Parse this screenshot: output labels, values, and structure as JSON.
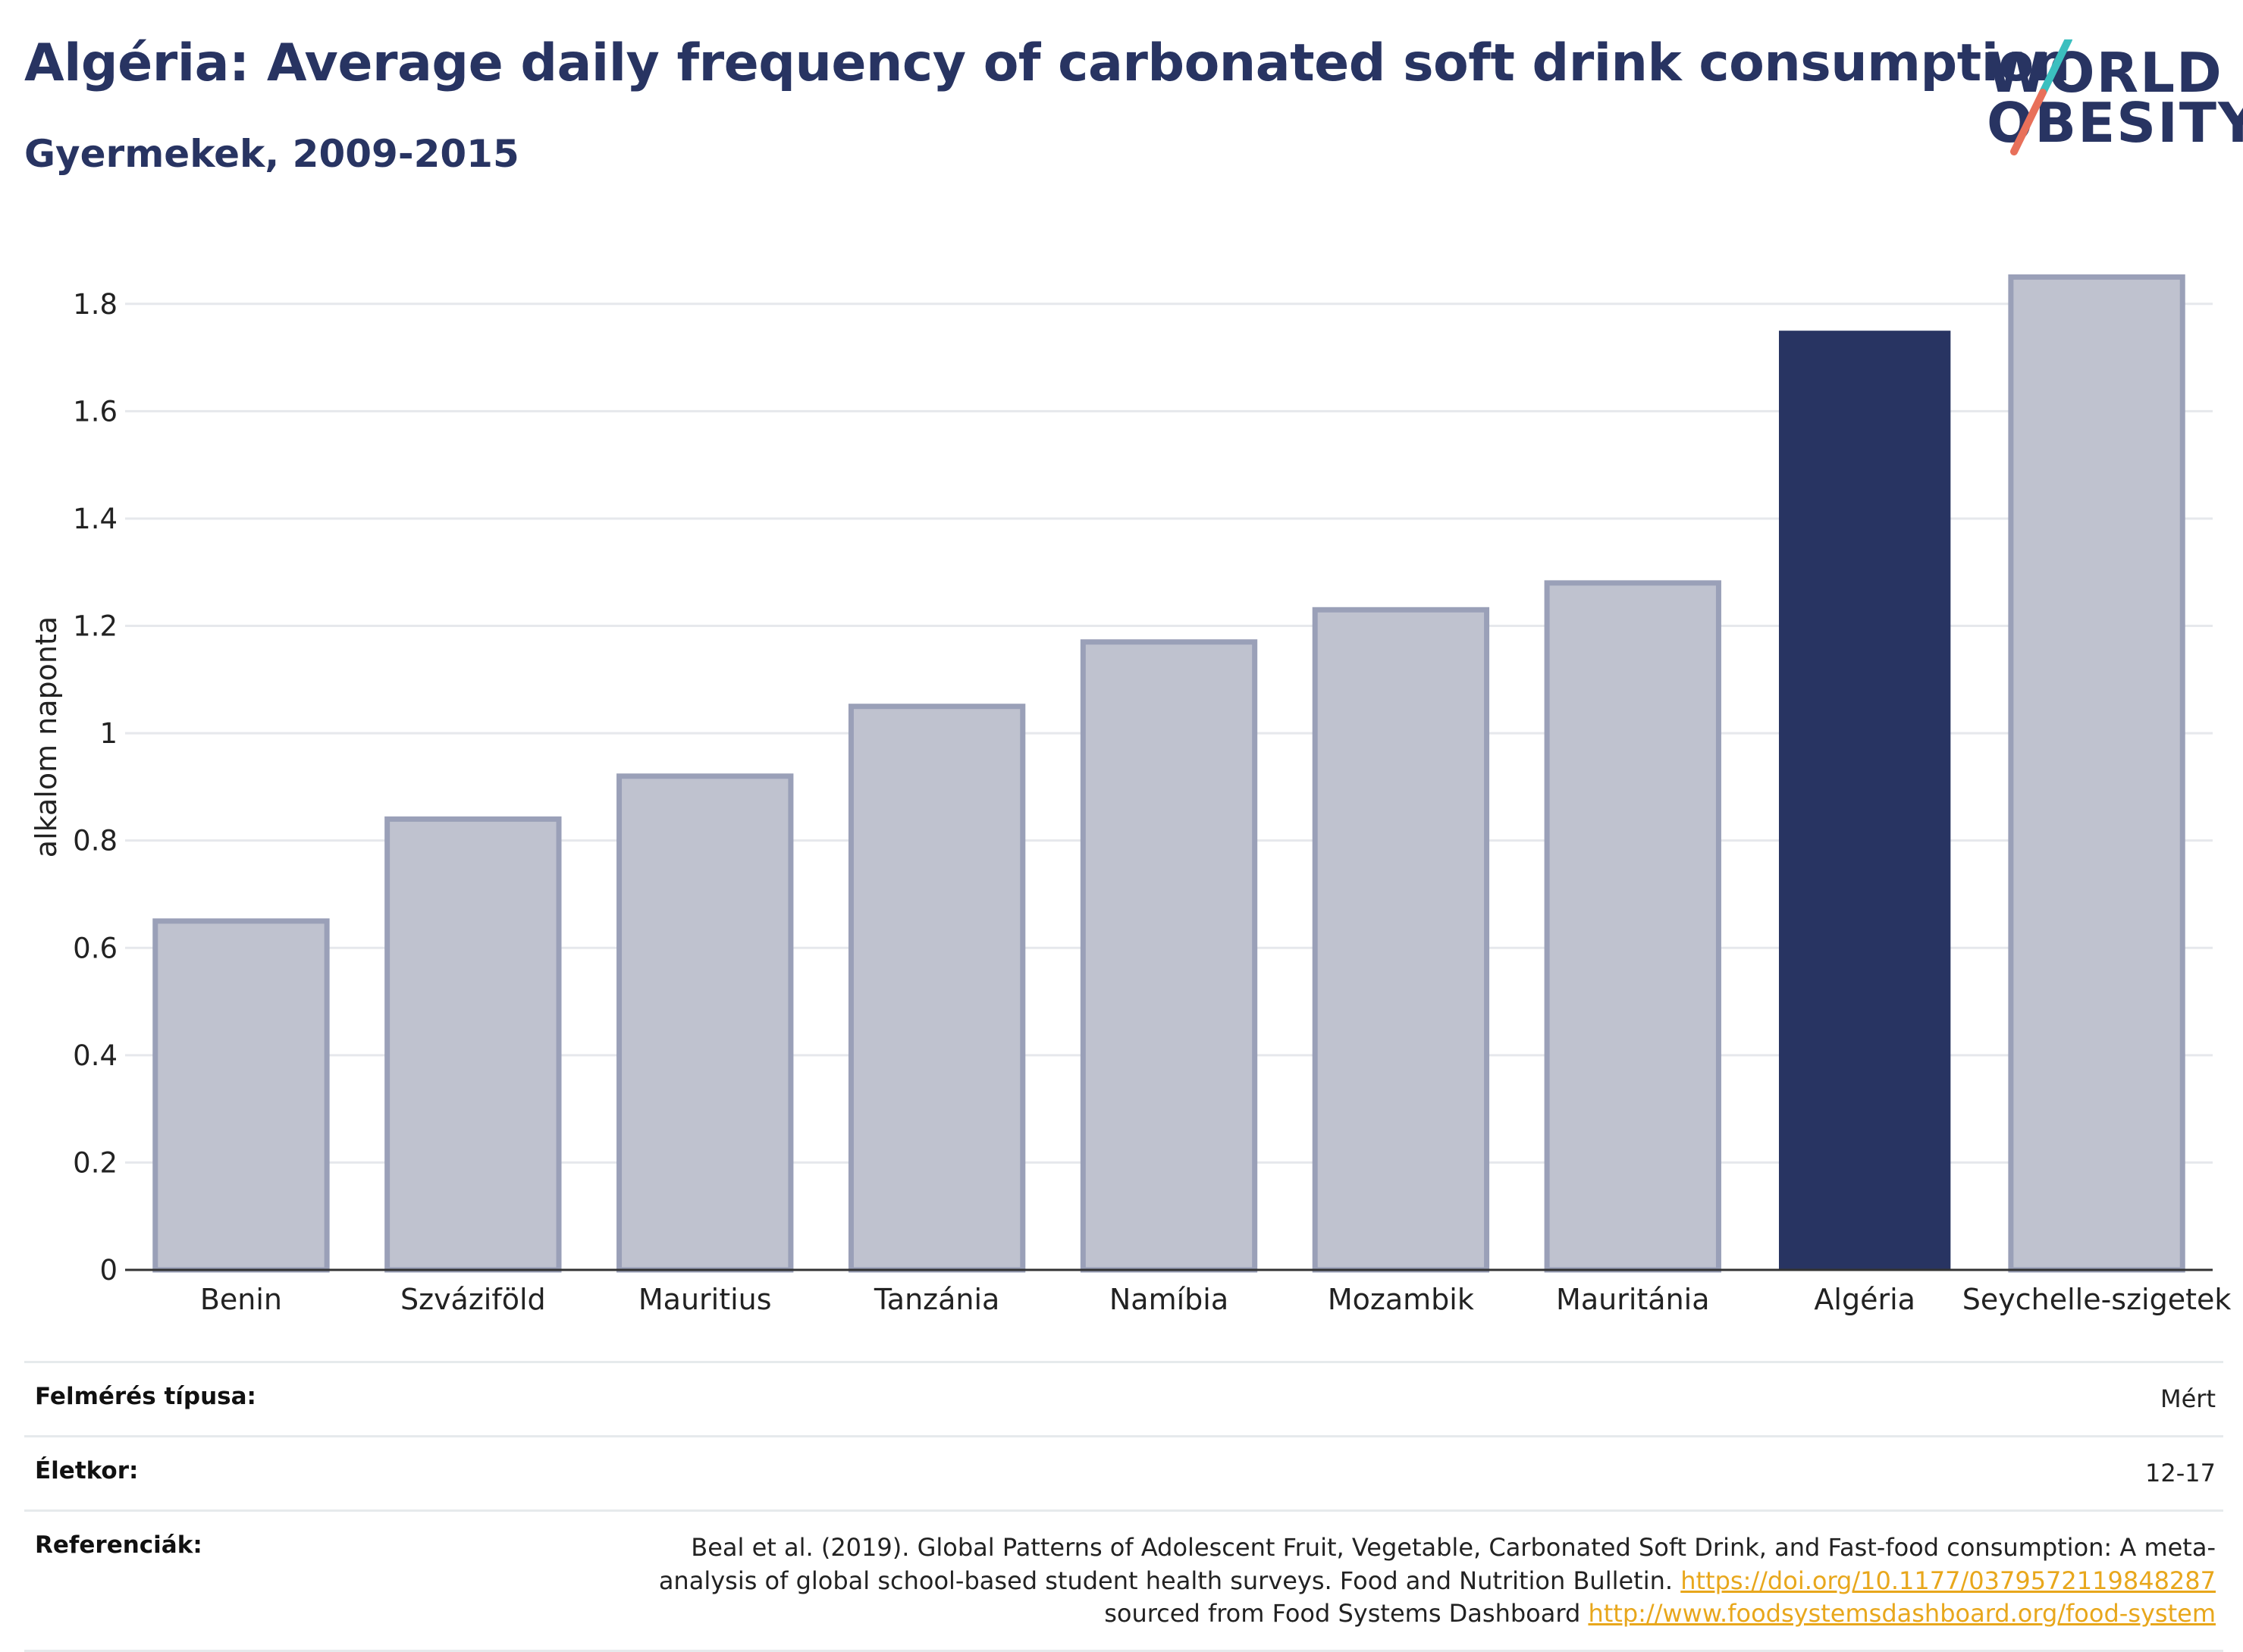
{
  "header": {
    "title": "Algéria: Average daily frequency of carbonated soft drink consumption",
    "subtitle": "Gyermekek, 2009-2015"
  },
  "logo": {
    "line1": "WORLD",
    "line2": "OBESITY",
    "colors": {
      "text": "#283462",
      "slash_top": "#3bbfbf",
      "slash_bottom": "#e8705a"
    }
  },
  "chart_data": {
    "type": "bar",
    "title": "Algéria: Average daily frequency of carbonated soft drink consumption",
    "subtitle": "Gyermekek, 2009-2015",
    "xlabel": "",
    "ylabel": "alkalom naponta",
    "categories": [
      "Benin",
      "Szváziföld",
      "Mauritius",
      "Tanzánia",
      "Namíbia",
      "Mozambik",
      "Mauritánia",
      "Algéria",
      "Seychelle-szigetek"
    ],
    "values": [
      0.65,
      0.84,
      0.92,
      1.05,
      1.17,
      1.23,
      1.28,
      1.75,
      1.85
    ],
    "highlight": "Algéria",
    "ylim": [
      0,
      1.9
    ],
    "yticks": [
      0,
      0.2,
      0.4,
      0.6,
      0.8,
      1,
      1.2,
      1.4,
      1.6,
      1.8
    ],
    "ytick_labels": [
      "0",
      "0.2",
      "0.4",
      "0.6",
      "0.8",
      "1",
      "1.2",
      "1.4",
      "1.6",
      "1.8"
    ],
    "grid": true,
    "legend": "none",
    "colors": {
      "highlight": "#283462",
      "other_fill": "#bfc2cf",
      "other_stroke": "#9aa0b8",
      "grid": "#e6e8ec",
      "axis": "#333333"
    }
  },
  "meta": {
    "survey_type_label": "Felmérés típusa:",
    "survey_type_value": "Mért",
    "age_label": "Életkor:",
    "age_value": "12-17",
    "references_label": "Referenciák:",
    "references_text_1": "Beal et al. (2019). Global Patterns of Adolescent Fruit, Vegetable, Carbonated Soft Drink, and Fast-food consumption: A meta-analysis of global school-based student health surveys. Food and Nutrition Bulletin.",
    "references_link_1": "https://doi.org/10.1177/0379572119848287",
    "references_text_2": "sourced from Food Systems Dashboard",
    "references_link_2": "http://www.foodsystemsdashboard.org/food-system"
  }
}
